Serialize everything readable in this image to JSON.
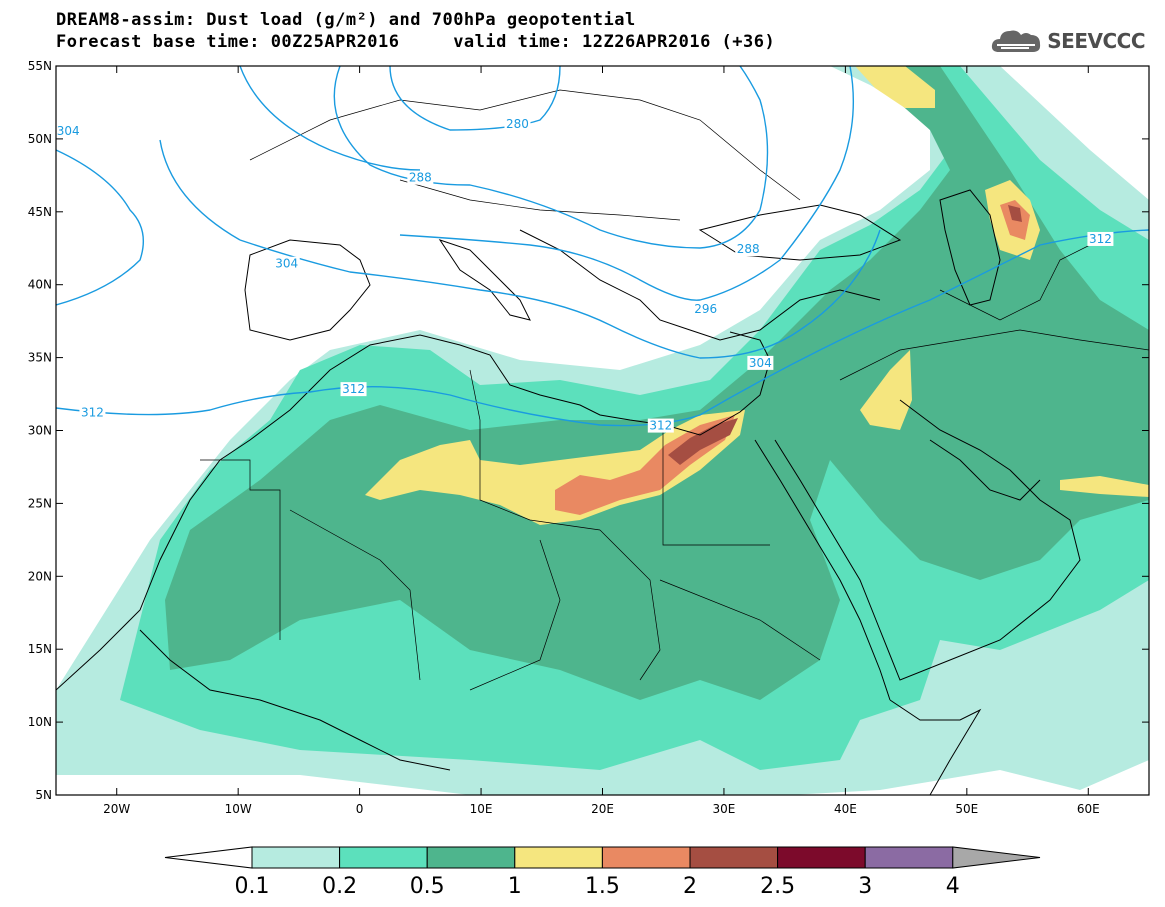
{
  "header": {
    "line1": "DREAM8-assim: Dust load (g/m²) and 700hPa geopotential",
    "line2": "Forecast base time: 00Z25APR2016     valid time: 12Z26APR2016 (+36)"
  },
  "logo": {
    "text": "SEEVCCC",
    "icon": "cloud-logo-icon"
  },
  "map": {
    "lat_labels": [
      "55N",
      "50N",
      "45N",
      "40N",
      "35N",
      "30N",
      "25N",
      "20N",
      "15N",
      "10N",
      "5N"
    ],
    "lon_labels": [
      "20W",
      "10W",
      "0",
      "10E",
      "20E",
      "30E",
      "40E",
      "50E",
      "60E"
    ],
    "extent": {
      "lon": [
        -25,
        65
      ],
      "lat": [
        5,
        55
      ]
    },
    "contour_labels": [
      {
        "text": "304",
        "lon": -24,
        "lat": 50.4
      },
      {
        "text": "280",
        "lon": 13,
        "lat": 50.9
      },
      {
        "text": "288",
        "lon": 5,
        "lat": 47.2
      },
      {
        "text": "288",
        "lon": 32,
        "lat": 42.3
      },
      {
        "text": "296",
        "lon": 28.5,
        "lat": 38.2
      },
      {
        "text": "304",
        "lon": -6,
        "lat": 41.3
      },
      {
        "text": "304",
        "lon": 33,
        "lat": 34.5
      },
      {
        "text": "312",
        "lon": -0.5,
        "lat": 32.7
      },
      {
        "text": "312",
        "lon": -22,
        "lat": 31.1
      },
      {
        "text": "312",
        "lon": 24.8,
        "lat": 30.2
      },
      {
        "text": "312",
        "lon": 61,
        "lat": 43.0
      }
    ]
  },
  "colorbar": {
    "levels": [
      "0.1",
      "0.2",
      "0.5",
      "1",
      "1.5",
      "2",
      "2.5",
      "3",
      "4"
    ],
    "colors": {
      "below": "#ffffff",
      "c1": "#b6ebe0",
      "c2": "#5ce0bc",
      "c3": "#4eb58d",
      "c4": "#f5e67f",
      "c5": "#e98962",
      "c6": "#a54e42",
      "c7": "#7c0a2b",
      "c8": "#8b6ba3",
      "above": "#a8a8a8"
    }
  },
  "contour_color": "#1a9be0"
}
